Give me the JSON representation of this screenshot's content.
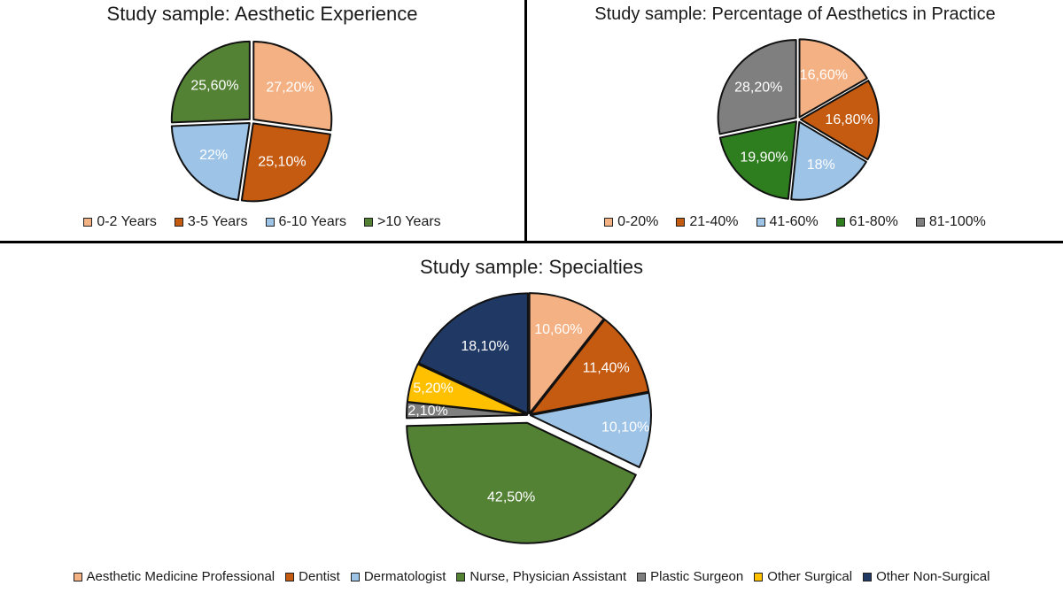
{
  "chart_data": [
    {
      "type": "pie",
      "title": "Study sample: Aesthetic Experience",
      "categories": [
        "0-2 Years",
        "3-5 Years",
        "6-10 Years",
        ">10 Years"
      ],
      "values": [
        27.2,
        25.1,
        22,
        25.6
      ],
      "labels": [
        "27,20%",
        "25,10%",
        "22%",
        "25,60%"
      ],
      "colors": [
        "#f4b183",
        "#c55a11",
        "#9dc3e6",
        "#548235"
      ],
      "legend": "bottom"
    },
    {
      "type": "pie",
      "title": "Study sample: Percentage of Aesthetics in Practice",
      "categories": [
        "0-20%",
        "21-40%",
        "41-60%",
        "61-80%",
        "81-100%"
      ],
      "values": [
        16.6,
        16.8,
        18,
        19.9,
        28.2
      ],
      "labels": [
        "16,60%",
        "16,80%",
        "18%",
        "19,90%",
        "28,20%"
      ],
      "colors": [
        "#f4b183",
        "#c55a11",
        "#9dc3e6",
        "#2e7d1f",
        "#7f7f7f"
      ],
      "legend": "bottom"
    },
    {
      "type": "pie",
      "title": "Study sample: Specialties",
      "categories": [
        "Aesthetic Medicine Professional",
        "Dentist",
        "Dermatologist",
        "Nurse, Physician Assistant",
        "Plastic Surgeon",
        "Other Surgical",
        "Other Non-Surgical"
      ],
      "values": [
        10.6,
        11.4,
        10.1,
        42.5,
        2.1,
        5.2,
        18.1
      ],
      "labels": [
        "10,60%",
        "11,40%",
        "10,10%",
        "42,50%",
        "2,10%",
        "5,20%",
        "18,10%"
      ],
      "colors": [
        "#f4b183",
        "#c55a11",
        "#9dc3e6",
        "#548235",
        "#7f7f7f",
        "#ffc000",
        "#203864"
      ],
      "legend": "bottom"
    }
  ]
}
